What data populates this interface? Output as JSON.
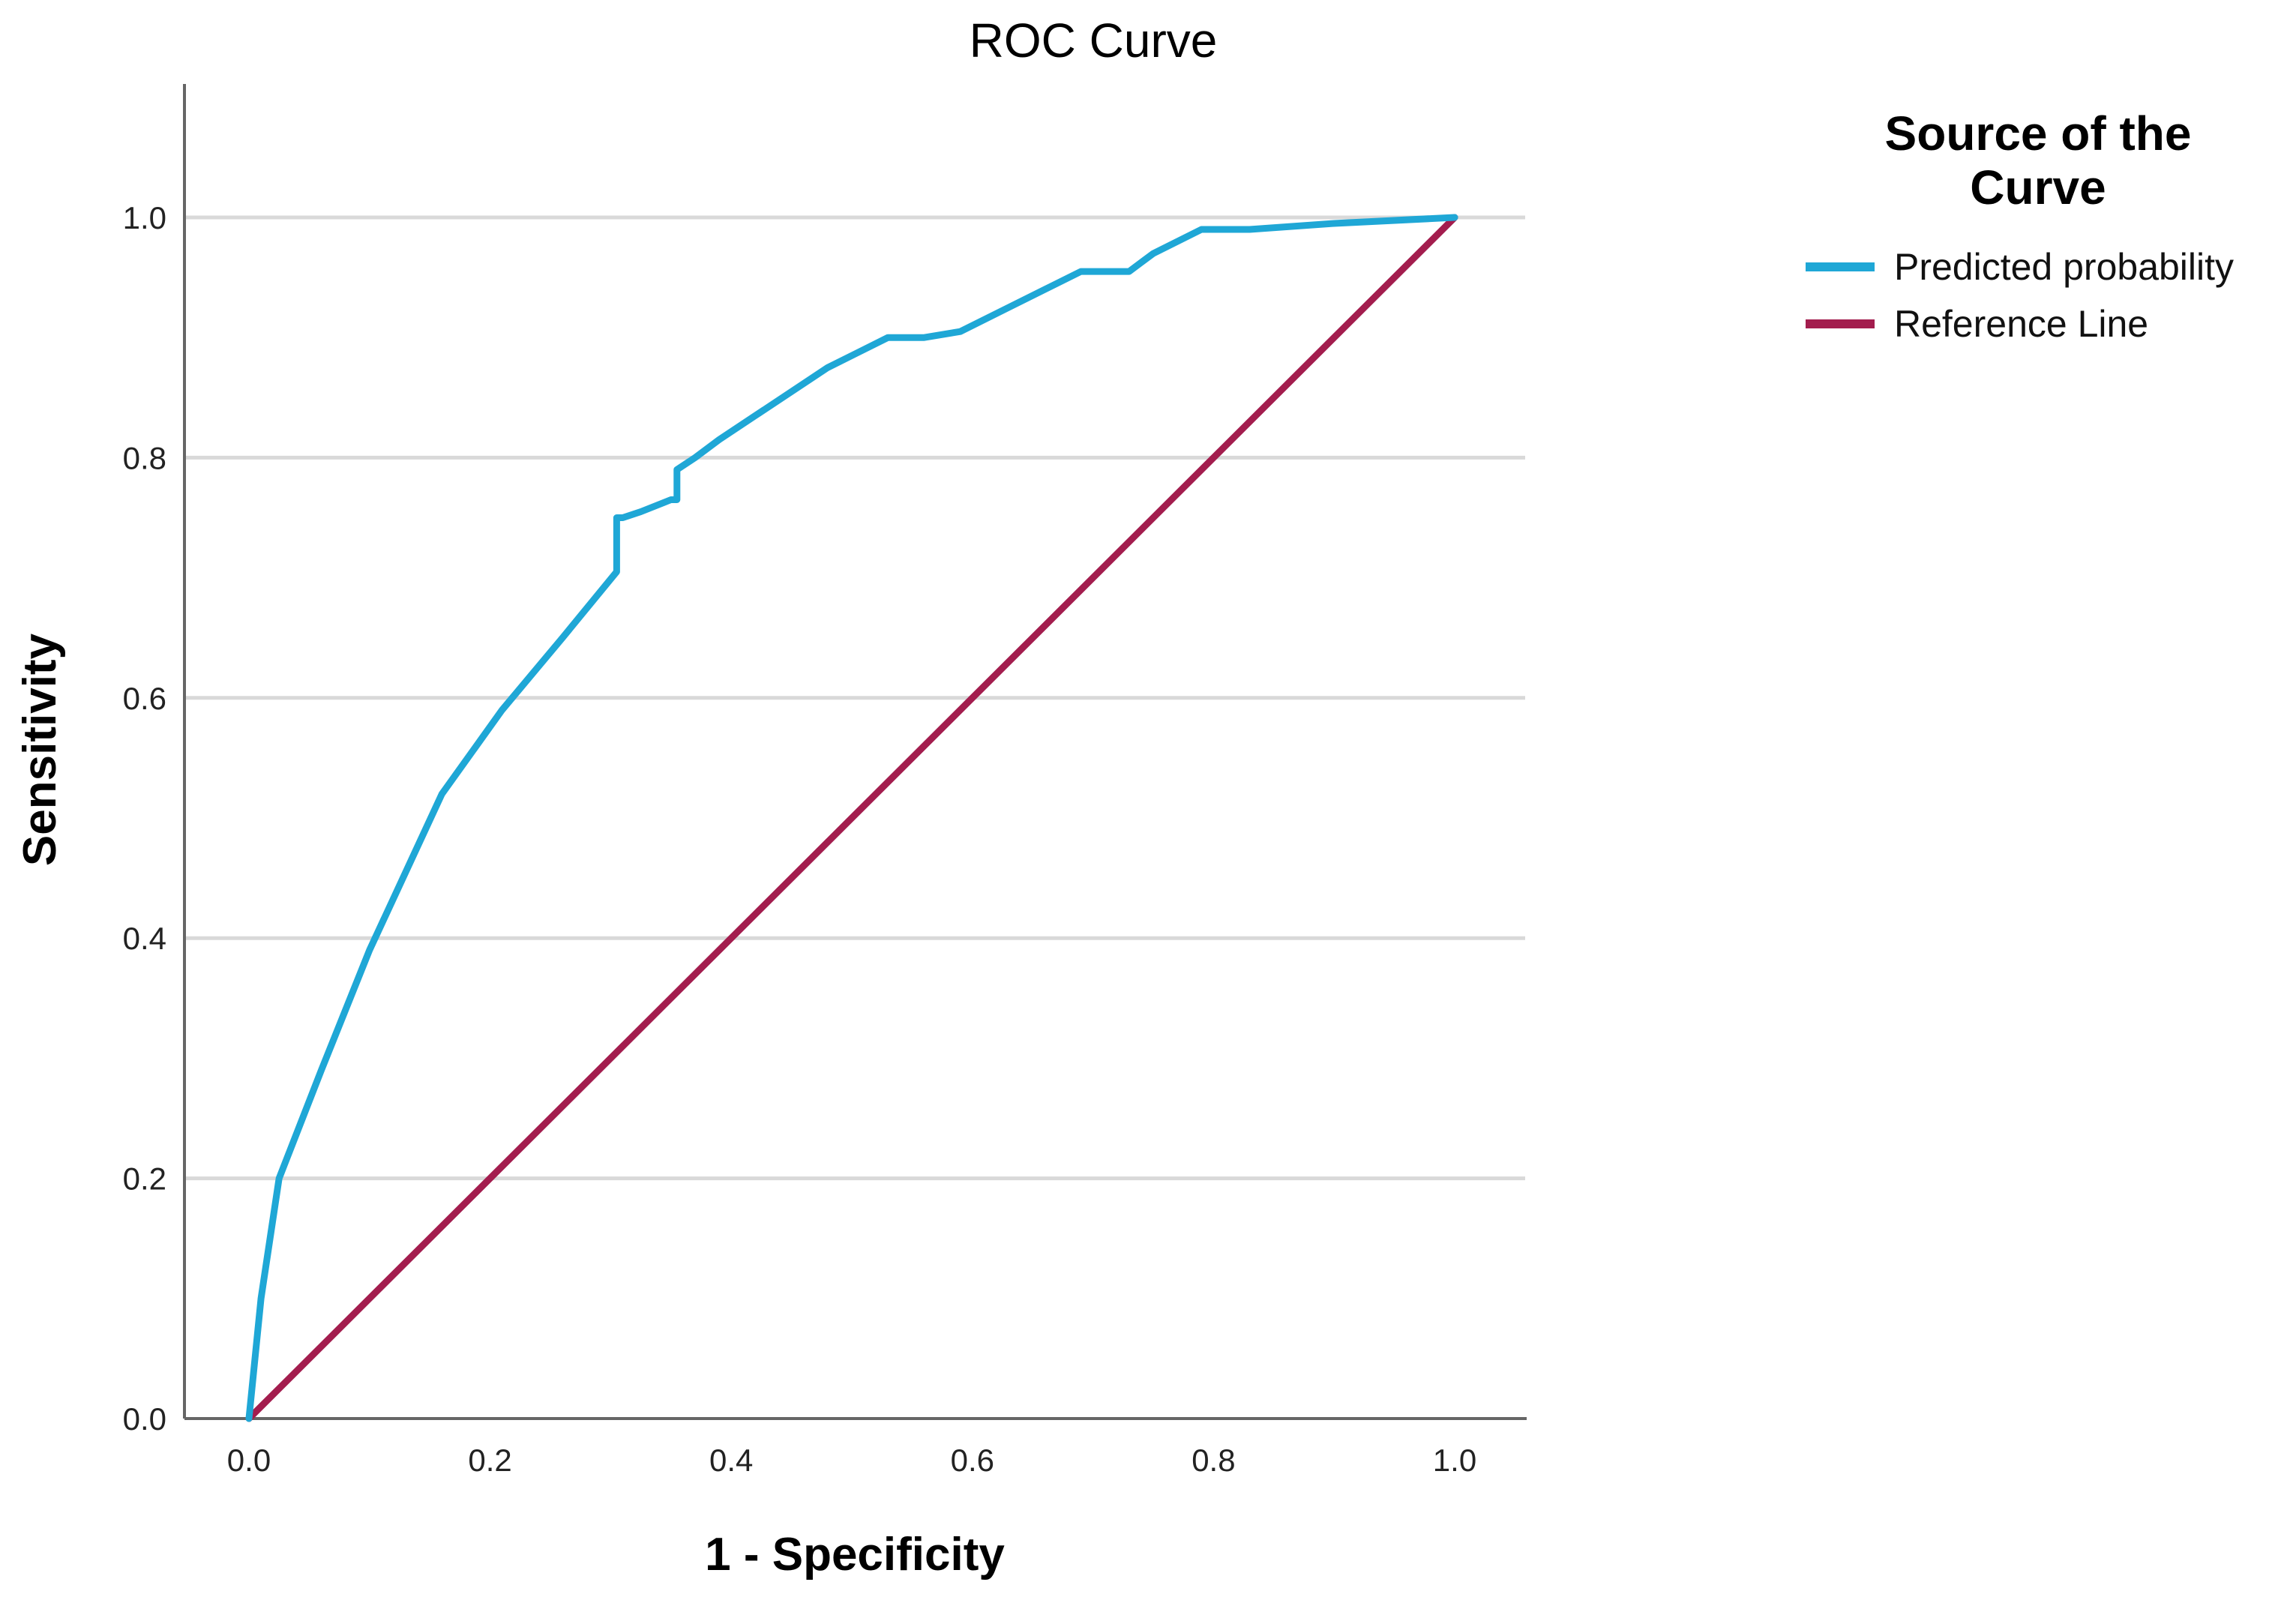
{
  "chart_data": {
    "type": "line",
    "title": "ROC Curve",
    "xlabel": "1 - Specificity",
    "ylabel": "Sensitivity",
    "xlim": [
      0,
      1
    ],
    "ylim": [
      0,
      1
    ],
    "x_ticks": [
      "0.0",
      "0.2",
      "0.4",
      "0.6",
      "0.8",
      "1.0"
    ],
    "y_ticks": [
      "0.0",
      "0.2",
      "0.4",
      "0.6",
      "0.8",
      "1.0"
    ],
    "grid": "horizontal",
    "legend": {
      "title": [
        "Source of the",
        "Curve"
      ],
      "placement": "top-right, outside plot"
    },
    "series": [
      {
        "name": "Predicted probability",
        "color": "#1fa7d6",
        "x": [
          0.0,
          0.01,
          0.025,
          0.06,
          0.1,
          0.16,
          0.21,
          0.26,
          0.305,
          0.305,
          0.31,
          0.325,
          0.35,
          0.355,
          0.355,
          0.37,
          0.39,
          0.42,
          0.48,
          0.53,
          0.56,
          0.59,
          0.63,
          0.69,
          0.73,
          0.75,
          0.79,
          0.83,
          0.9,
          1.0
        ],
        "y": [
          0.0,
          0.1,
          0.2,
          0.29,
          0.39,
          0.52,
          0.59,
          0.65,
          0.705,
          0.75,
          0.75,
          0.755,
          0.765,
          0.765,
          0.79,
          0.8,
          0.815,
          0.835,
          0.875,
          0.9,
          0.9,
          0.905,
          0.925,
          0.955,
          0.955,
          0.97,
          0.99,
          0.99,
          0.995,
          1.0
        ]
      },
      {
        "name": "Reference Line",
        "color": "#a31d4e",
        "x": [
          0.0,
          1.0
        ],
        "y": [
          0.0,
          1.0
        ]
      }
    ]
  }
}
